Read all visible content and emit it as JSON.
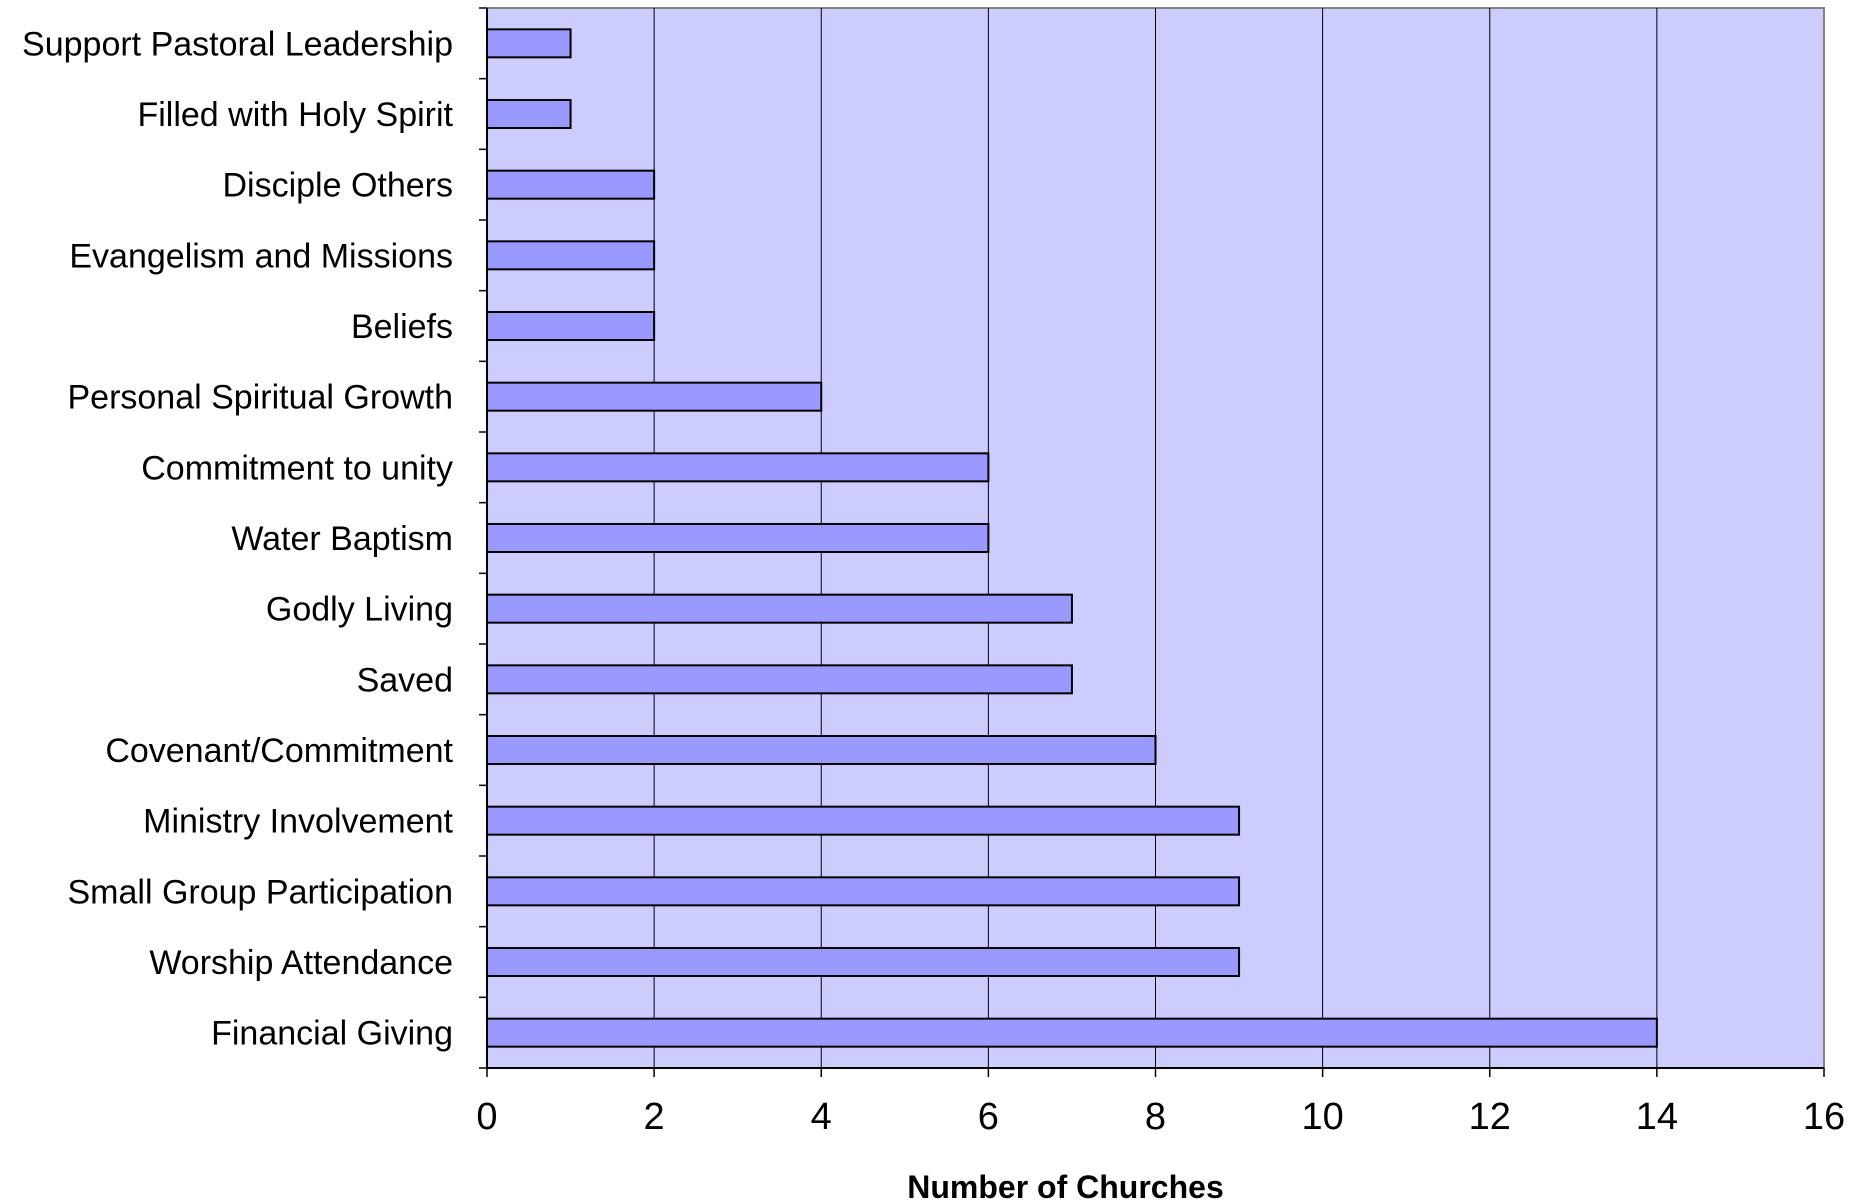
{
  "chart_data": {
    "type": "bar",
    "orientation": "horizontal",
    "categories": [
      "Support Pastoral Leadership",
      "Filled with Holy Spirit",
      "Disciple Others",
      "Evangelism and Missions",
      "Beliefs",
      "Personal Spiritual Growth",
      "Commitment to unity",
      "Water Baptism",
      "Godly Living",
      "Saved",
      "Covenant/Commitment",
      "Ministry Involvement",
      "Small Group Participation",
      "Worship Attendance",
      "Financial Giving"
    ],
    "values": [
      1,
      1,
      2,
      2,
      2,
      4,
      6,
      6,
      7,
      7,
      8,
      9,
      9,
      9,
      14
    ],
    "xlabel": "Number of Churches",
    "ylabel": "",
    "xlim": [
      0,
      16
    ],
    "xticks": [
      "0",
      "2",
      "4",
      "6",
      "8",
      "10",
      "12",
      "14",
      "16"
    ],
    "grid": "vertical",
    "legend": "none",
    "colors": {
      "plot_background": "#ccccff",
      "bar_fill": "#9999ff",
      "bar_stroke": "#000000",
      "gridline": "#000000"
    }
  }
}
